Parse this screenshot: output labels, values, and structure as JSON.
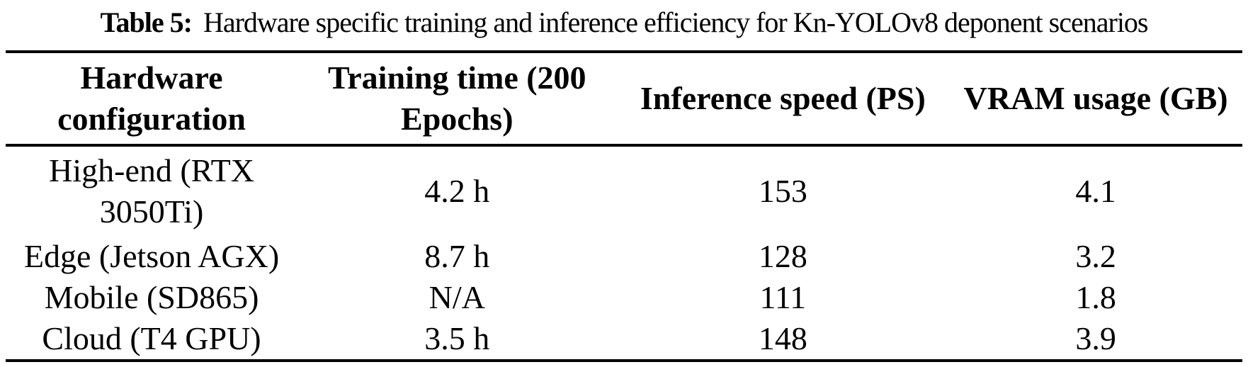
{
  "caption": {
    "label": "Table 5:",
    "text": "Hardware specific training and inference efficiency for Kn-YOLOv8 deponent scenarios"
  },
  "table": {
    "columns": [
      "Hardware\nconfiguration",
      "Training time (200\nEpochs)",
      "Inference speed (PS)",
      "VRAM usage (GB)"
    ],
    "rows": [
      [
        "High-end (RTX\n3050Ti)",
        "4.2 h",
        "153",
        "4.1"
      ],
      [
        "Edge (Jetson AGX)",
        "8.7 h",
        "128",
        "3.2"
      ],
      [
        "Mobile (SD865)",
        "N/A",
        "111",
        "1.8"
      ],
      [
        "Cloud (T4 GPU)",
        "3.5 h",
        "148",
        "3.9"
      ]
    ]
  },
  "colors": {
    "text": "#000000",
    "background": "#ffffff",
    "rule": "#000000"
  }
}
